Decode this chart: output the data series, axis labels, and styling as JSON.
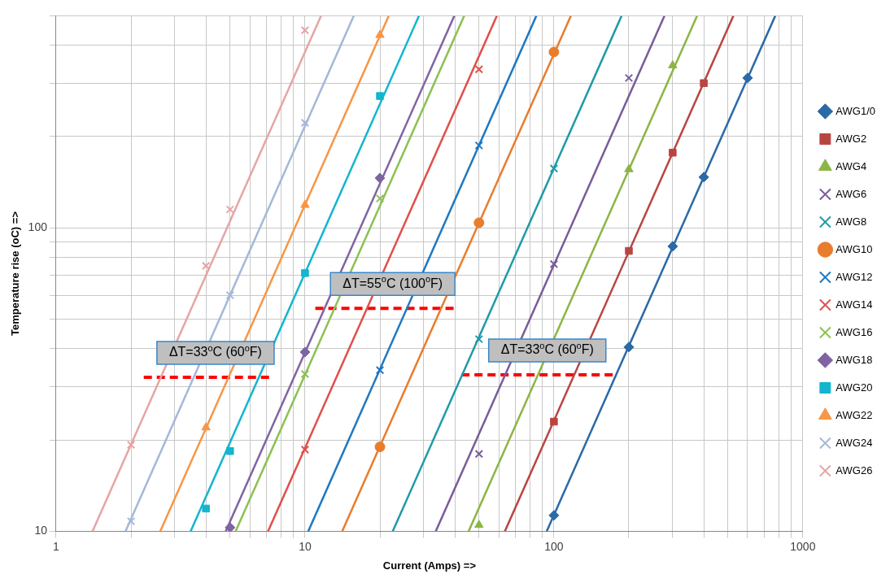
{
  "chart_data": {
    "type": "scatter",
    "xlabel": "Current (Amps) =>",
    "ylabel": "Temperature rise (oC) =>",
    "log": "xy",
    "grid": true,
    "legend": "right",
    "xlim": [
      1,
      1000
    ],
    "ylim": [
      10,
      500
    ],
    "xticks": [
      1,
      {
        "value": 2,
        "label": null
      },
      {
        "value": 3,
        "label": null
      },
      {
        "value": 4,
        "label": null
      },
      {
        "value": 5,
        "label": null
      },
      {
        "value": 6,
        "label": null
      },
      {
        "value": 7,
        "label": null
      },
      {
        "value": 8,
        "label": null
      },
      {
        "value": 9,
        "label": null
      },
      10,
      {
        "value": 20,
        "label": null
      },
      {
        "value": 30,
        "label": null
      },
      {
        "value": 40,
        "label": null
      },
      {
        "value": 50,
        "label": null
      },
      {
        "value": 60,
        "label": null
      },
      {
        "value": 70,
        "label": null
      },
      {
        "value": 80,
        "label": null
      },
      {
        "value": 90,
        "label": null
      },
      100,
      {
        "value": 200,
        "label": null
      },
      {
        "value": 300,
        "label": null
      },
      {
        "value": 400,
        "label": null
      },
      {
        "value": 500,
        "label": null
      },
      {
        "value": 600,
        "label": null
      },
      {
        "value": 700,
        "label": null
      },
      {
        "value": 800,
        "label": null
      },
      {
        "value": 900,
        "label": null
      },
      1000
    ],
    "yticks": [
      10,
      {
        "value": 20,
        "label": null
      },
      {
        "value": 30,
        "label": null
      },
      {
        "value": 40,
        "label": null
      },
      {
        "value": 50,
        "label": null
      },
      {
        "value": 60,
        "label": null
      },
      {
        "value": 70,
        "label": null
      },
      {
        "value": 80,
        "label": null
      },
      {
        "value": 90,
        "label": null
      },
      100,
      {
        "value": 200,
        "label": null
      },
      {
        "value": 300,
        "label": null
      },
      {
        "value": 400,
        "label": null
      },
      {
        "value": 500,
        "label": null
      }
    ],
    "series": [
      {
        "name": "AWG1/0",
        "color": "#2a6aa6",
        "marker": "diamond",
        "x": [
          100,
          200,
          300,
          400,
          600
        ],
        "values": [
          11.3,
          40.5,
          87,
          147,
          312
        ]
      },
      {
        "name": "AWG2",
        "color": "#b94542",
        "marker": "square",
        "x": [
          100,
          200,
          300,
          400
        ],
        "values": [
          23,
          84,
          177,
          300
        ]
      },
      {
        "name": "AWG4",
        "color": "#8db545",
        "marker": "triangle",
        "x": [
          50,
          200,
          300
        ],
        "values": [
          10.5,
          156,
          343
        ]
      },
      {
        "name": "AWG6",
        "color": "#7a5c99",
        "marker": "cross",
        "x": [
          50,
          100,
          200
        ],
        "values": [
          18,
          76,
          312
        ]
      },
      {
        "name": "AWG8",
        "color": "#1f9aa8",
        "marker": "cross",
        "x": [
          50,
          100
        ],
        "values": [
          43,
          157
        ]
      },
      {
        "name": "AWG10",
        "color": "#e87d2e",
        "marker": "circle",
        "x": [
          20,
          50,
          100
        ],
        "values": [
          19,
          104,
          380
        ]
      },
      {
        "name": "AWG12",
        "color": "#1e78c2",
        "marker": "cross",
        "x": [
          20,
          50
        ],
        "values": [
          34,
          187
        ]
      },
      {
        "name": "AWG14",
        "color": "#e0504c",
        "marker": "cross",
        "x": [
          10,
          50
        ],
        "values": [
          18.6,
          333
        ]
      },
      {
        "name": "AWG16",
        "color": "#8cc152",
        "marker": "cross",
        "x": [
          10,
          20
        ],
        "values": [
          33,
          125
        ]
      },
      {
        "name": "AWG18",
        "color": "#8064a2",
        "marker": "diamond",
        "x": [
          5,
          10,
          20
        ],
        "values": [
          10.3,
          39,
          146
        ]
      },
      {
        "name": "AWG20",
        "color": "#13b5cf",
        "marker": "square",
        "x": [
          4,
          5,
          10,
          20
        ],
        "values": [
          11.9,
          18.4,
          71,
          272
        ]
      },
      {
        "name": "AWG22",
        "color": "#f79646",
        "marker": "triangle",
        "x": [
          4,
          10,
          20
        ],
        "values": [
          22,
          119,
          432
        ]
      },
      {
        "name": "AWG24",
        "color": "#a5b8d8",
        "marker": "cross",
        "x": [
          2,
          5,
          10
        ],
        "values": [
          10.8,
          60,
          222
        ]
      },
      {
        "name": "AWG26",
        "color": "#e6a5a5",
        "marker": "cross",
        "x": [
          2,
          4,
          5,
          10
        ],
        "values": [
          19.3,
          75,
          115,
          448
        ]
      },
      {
        "type": "line",
        "color": "#2a6aa6",
        "x": [
          93.5,
          775
        ],
        "values": [
          10,
          500
        ]
      },
      {
        "type": "line",
        "color": "#b94542",
        "x": [
          63.5,
          526
        ],
        "values": [
          10,
          500
        ]
      },
      {
        "type": "line",
        "color": "#8db545",
        "x": [
          45.4,
          376
        ],
        "values": [
          10,
          500
        ]
      },
      {
        "type": "line",
        "color": "#7a5c99",
        "x": [
          33.5,
          278
        ],
        "values": [
          10,
          500
        ]
      },
      {
        "type": "line",
        "color": "#1f9aa8",
        "x": [
          22.5,
          187
        ],
        "values": [
          10,
          500
        ]
      },
      {
        "type": "line",
        "color": "#e87d2e",
        "x": [
          14.1,
          117
        ],
        "values": [
          10,
          500
        ]
      },
      {
        "type": "line",
        "color": "#1e78c2",
        "x": [
          10.3,
          85
        ],
        "values": [
          10,
          500
        ]
      },
      {
        "type": "line",
        "color": "#e0504c",
        "x": [
          7.1,
          59
        ],
        "values": [
          10,
          500
        ]
      },
      {
        "type": "line",
        "color": "#8cc152",
        "x": [
          5.26,
          43.6
        ],
        "values": [
          10,
          500
        ]
      },
      {
        "type": "line",
        "color": "#8064a2",
        "x": [
          4.8,
          39.8
        ],
        "values": [
          10,
          500
        ]
      },
      {
        "type": "line",
        "color": "#13b5cf",
        "x": [
          3.47,
          28.7
        ],
        "values": [
          10,
          500
        ]
      },
      {
        "type": "line",
        "color": "#f79646",
        "x": [
          2.62,
          21.7
        ],
        "values": [
          10,
          500
        ]
      },
      {
        "type": "line",
        "color": "#a5b8d8",
        "x": [
          1.9,
          15.7
        ],
        "values": [
          10,
          500
        ]
      },
      {
        "type": "line",
        "color": "#e6a5a5",
        "x": [
          1.4,
          11.6
        ],
        "values": [
          10,
          500
        ]
      },
      {
        "type": "line",
        "color": "#ff0000",
        "line_style": "dashed",
        "x": [
          2.25,
          7.3
        ],
        "values": [
          32.2,
          32.2
        ]
      },
      {
        "type": "line",
        "color": "#ff0000",
        "line_style": "dashed",
        "x": [
          11,
          39.6
        ],
        "values": [
          54.3,
          54.3
        ]
      },
      {
        "type": "line",
        "color": "#ff0000",
        "line_style": "dashed",
        "x": [
          42.5,
          179
        ],
        "values": [
          32.8,
          32.8
        ]
      }
    ],
    "annotations": [
      "ΔT=33$^{o}$C (60$^{o}$F)",
      "ΔT=55$^{o}$C (100$^{o}$F)",
      "ΔT=33$^{o}$C (60$^{o}$F)"
    ]
  }
}
